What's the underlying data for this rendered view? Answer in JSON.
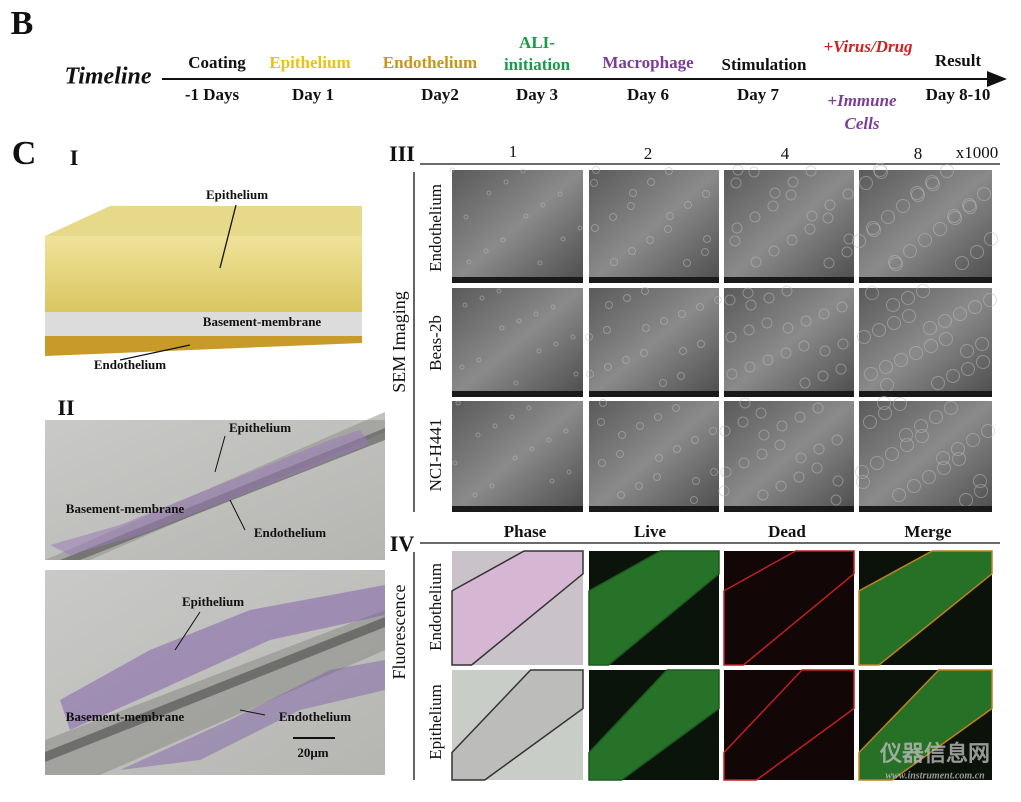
{
  "panel_b": {
    "label": "B",
    "timeline_label": "Timeline",
    "stages": [
      {
        "name": "Coating",
        "time": "-1 Days"
      },
      {
        "name": "Epithelium",
        "time": "Day 1"
      },
      {
        "name": "Endothelium",
        "time": "Day2"
      },
      {
        "name": [
          "ALI-",
          "initiation"
        ],
        "time": "Day 3"
      },
      {
        "name": "Macrophage",
        "time": "Day 6"
      },
      {
        "name": "Stimulation",
        "time": "Day 7"
      },
      {
        "name": "+Virus/Drug",
        "time": [
          "+Immune",
          "Cells"
        ]
      },
      {
        "name": "Result",
        "time": "Day 8-10"
      }
    ]
  },
  "panel_c": {
    "label": "C",
    "part_1": {
      "label": "I",
      "layers": [
        "Epithelium",
        "Basement-membrane",
        "Endothelium"
      ]
    },
    "part_2": {
      "label": "II",
      "top_image": [
        "Epithelium",
        "Basement-membrane",
        "Endothelium"
      ],
      "bottom_image": [
        "Epithelium",
        "Basement-membrane",
        "Endothelium"
      ],
      "scale_bar": "20μm"
    },
    "part_3": {
      "label": "III",
      "group": "SEM Imaging",
      "columns": [
        "1",
        "2",
        "4",
        "8"
      ],
      "magnification": "x1000",
      "rows": [
        "Endothelium",
        "Beas-2b",
        "NCI-H441"
      ]
    },
    "part_4": {
      "label": "IV",
      "group": "Fluorescence",
      "columns": [
        "Phase",
        "Live",
        "Dead",
        "Merge"
      ],
      "rows": [
        "Endothelium",
        "Epithelium"
      ]
    }
  },
  "watermark": {
    "name": "仪器信息网",
    "url": "www.instrument.com.cn"
  }
}
